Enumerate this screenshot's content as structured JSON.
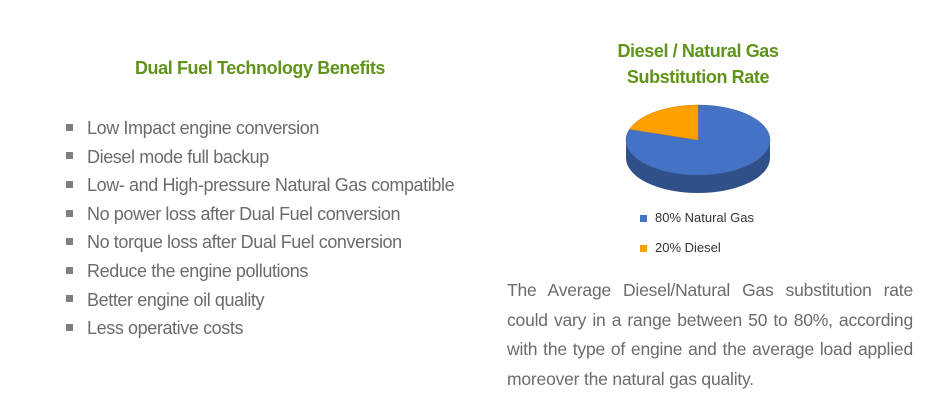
{
  "header": {
    "title": "Dual Fuel Technology Benefits"
  },
  "benefits": [
    "Low Impact engine conversion",
    "Diesel mode full backup",
    "Low- and High-pressure Natural Gas compatible",
    "No power loss after Dual Fuel conversion",
    "No torque loss after Dual Fuel conversion",
    "Reduce the engine pollutions",
    "Better engine oil quality",
    "Less operative costs"
  ],
  "chart_data": {
    "type": "pie",
    "title": "Diesel / Natural Gas Substitution Rate",
    "categories": [
      "80% Natural Gas",
      "20% Diesel"
    ],
    "values": [
      80,
      20
    ],
    "colors": [
      "#4472c4",
      "#ffa000"
    ]
  },
  "description": "The Average Diesel/Natural Gas substitution rate could vary in a range between 50 to 80%, according with the type of engine and the average load applied moreover the natural gas quality."
}
